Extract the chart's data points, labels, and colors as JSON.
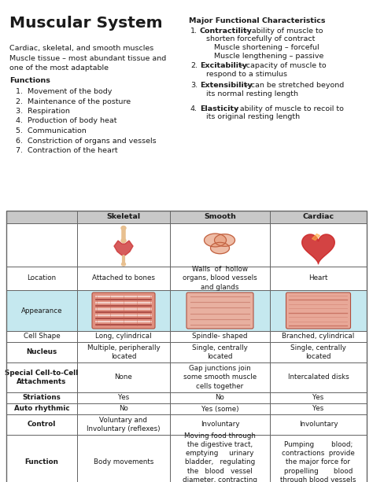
{
  "title": "Muscular System",
  "subtitle1": "Cardiac, skeletal, and smooth muscles",
  "subtitle2": "Muscle tissue – most abundant tissue and\none of the most adaptable",
  "functions_title": "Functions",
  "functions": [
    "Movement of the body",
    "Maintenance of the posture",
    "Respiration",
    "Production of body heat",
    "Communication",
    "Constriction of organs and vessels",
    "Contraction of the heart"
  ],
  "major_title": "Major Functional Characteristics",
  "major_items": [
    {
      "num": "1.",
      "bold": "Contractility",
      "rest1": " – ability of muscle to",
      "rest2": "shorten forcefully of contract",
      "sub": [
        "Muscle shortening – forceful",
        "Muscle lengthening – passive"
      ]
    },
    {
      "num": "2.",
      "bold": "Excitability",
      "rest1": " – capacity of muscle to",
      "rest2": "respond to a stimulus",
      "sub": []
    },
    {
      "num": "3.",
      "bold": "Extensibility",
      "rest1": " – can be stretched beyond",
      "rest2": "its normal resting length",
      "sub": []
    },
    {
      "num": "4.",
      "bold": "Elasticity",
      "rest1": " – ability of muscle to recoil to",
      "rest2": "its original resting length",
      "sub": []
    }
  ],
  "table_headers": [
    "",
    "Skeletal",
    "Smooth",
    "Cardiac"
  ],
  "table_rows": [
    {
      "label": "Location",
      "lbold": false,
      "skeletal": "Attached to bones",
      "smooth": "Walls  of  hollow\norgans, blood vessels\nand glands",
      "cardiac": "Heart"
    },
    {
      "label": "Appearance",
      "lbold": false,
      "skeletal": "",
      "smooth": "",
      "cardiac": "",
      "is_appearance": true
    },
    {
      "label": "Cell Shape",
      "lbold": false,
      "skeletal": "Long, cylindrical",
      "smooth": "Spindle- shaped",
      "cardiac": "Branched, cylindrical"
    },
    {
      "label": "Nucleus",
      "lbold": true,
      "skeletal": "Multiple, peripherally\nlocated",
      "smooth": "Single, centrally\nlocated",
      "cardiac": "Single, centrally\nlocated"
    },
    {
      "label": "Special Cell-to-Cell\nAttachments",
      "lbold": true,
      "skeletal": "None",
      "smooth": "Gap junctions join\nsome smooth muscle\ncells together",
      "cardiac": "Intercalated disks"
    },
    {
      "label": "Striations",
      "lbold": true,
      "skeletal": "Yes",
      "smooth": "No",
      "cardiac": "Yes"
    },
    {
      "label": "Auto rhythmic",
      "lbold": true,
      "skeletal": "No",
      "smooth": "Yes (some)",
      "cardiac": "Yes"
    },
    {
      "label": "Control",
      "lbold": true,
      "skeletal": "Voluntary and\nInvoluntary (reflexes)",
      "smooth": "Involuntary",
      "cardiac": "Involuntary"
    },
    {
      "label": "Function",
      "lbold": true,
      "skeletal": "Body movements",
      "smooth": "Moving food through\nthe digestive tract,\nemptying     urinary\nbladder,   regulating\nthe   blood   vessel\ndiameter, contracting\nmany gland ducts",
      "cardiac": "Pumping        blood;\ncontractions  provide\nthe major force for\npropelling       blood\nthrough blood vessels"
    }
  ],
  "bg_color": "#ffffff",
  "text_color": "#1a1a1a",
  "table_border": "#666666",
  "header_bg": "#c8c8c8",
  "appearance_bg": "#c5e8ef"
}
